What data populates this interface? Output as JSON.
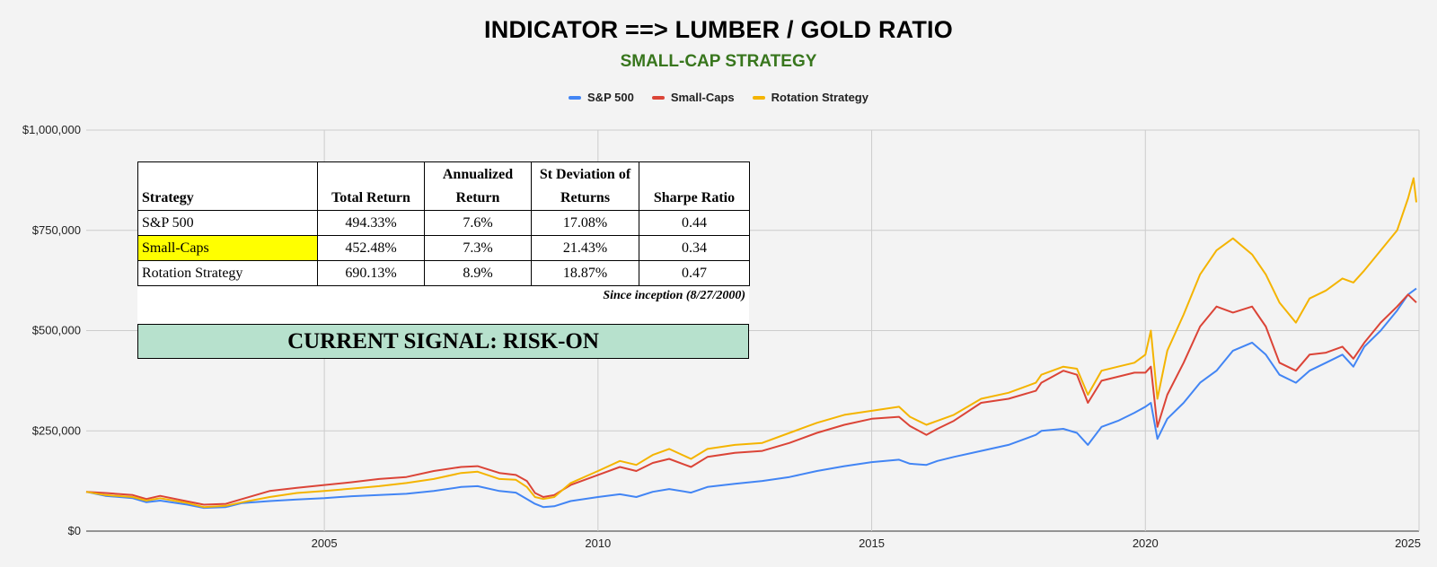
{
  "title": "INDICATOR ==> LUMBER / GOLD RATIO",
  "subtitle": "SMALL-CAP STRATEGY",
  "colors": {
    "sp500": "#4285f4",
    "smallcaps": "#db4437",
    "rotation": "#f4b400",
    "subtitle": "#38761d",
    "signal_bg": "#b7e1cd",
    "highlight": "#ffff00"
  },
  "legend": [
    {
      "label": "S&P 500",
      "color": "#4285f4"
    },
    {
      "label": "Small-Caps",
      "color": "#db4437"
    },
    {
      "label": "Rotation Strategy",
      "color": "#f4b400"
    }
  ],
  "stats_table": {
    "headers": [
      "Strategy",
      "Total Return",
      "Annualized Return",
      "St Deviation of Returns",
      "Sharpe Ratio"
    ],
    "rows": [
      [
        "S&P 500",
        "494.33%",
        "7.6%",
        "17.08%",
        "0.44"
      ],
      [
        "Small-Caps",
        "452.48%",
        "7.3%",
        "21.43%",
        "0.34"
      ],
      [
        "Rotation Strategy",
        "690.13%",
        "8.9%",
        "18.87%",
        "0.47"
      ]
    ],
    "footnote": "Since inception (8/27/2000)"
  },
  "signal": "CURRENT SIGNAL: RISK-ON",
  "chart_data": {
    "type": "line",
    "title": "INDICATOR ==> LUMBER / GOLD RATIO",
    "subtitle": "SMALL-CAP STRATEGY",
    "xlabel": "",
    "ylabel": "",
    "xlim": [
      2000.65,
      2025.0
    ],
    "ylim": [
      0,
      1000000
    ],
    "x_ticks": [
      2005,
      2010,
      2015,
      2020,
      2025
    ],
    "x_tick_labels": [
      "2005",
      "2010",
      "2015",
      "2020",
      "2025"
    ],
    "y_ticks": [
      0,
      250000,
      500000,
      750000,
      1000000
    ],
    "y_tick_labels": [
      "$0",
      "$250,000",
      "$500,000",
      "$750,000",
      "$1,000,000"
    ],
    "grid": true,
    "legend_position": "top-center",
    "series": [
      {
        "name": "S&P 500",
        "color": "#4285f4",
        "x": [
          2000.65,
          2001.0,
          2001.5,
          2001.75,
          2002.0,
          2002.5,
          2002.8,
          2003.2,
          2003.5,
          2004.0,
          2004.5,
          2005.0,
          2005.5,
          2006.0,
          2006.5,
          2007.0,
          2007.5,
          2007.8,
          2008.2,
          2008.5,
          2008.7,
          2008.85,
          2009.0,
          2009.2,
          2009.5,
          2010.0,
          2010.4,
          2010.7,
          2011.0,
          2011.3,
          2011.7,
          2012.0,
          2012.5,
          2013.0,
          2013.5,
          2014.0,
          2014.5,
          2015.0,
          2015.5,
          2015.7,
          2016.0,
          2016.2,
          2016.5,
          2017.0,
          2017.5,
          2018.0,
          2018.1,
          2018.5,
          2018.75,
          2018.95,
          2019.2,
          2019.5,
          2019.8,
          2020.0,
          2020.1,
          2020.22,
          2020.4,
          2020.7,
          2021.0,
          2021.3,
          2021.6,
          2021.95,
          2022.2,
          2022.45,
          2022.75,
          2023.0,
          2023.3,
          2023.6,
          2023.8,
          2024.0,
          2024.3,
          2024.6,
          2024.8,
          2024.95
        ],
        "y": [
          98000,
          88000,
          82000,
          72000,
          76000,
          66000,
          58000,
          60000,
          70000,
          75000,
          79000,
          82000,
          87000,
          90000,
          93000,
          100000,
          110000,
          112000,
          100000,
          96000,
          80000,
          68000,
          60000,
          62000,
          75000,
          85000,
          92000,
          85000,
          98000,
          105000,
          96000,
          110000,
          118000,
          125000,
          135000,
          150000,
          162000,
          172000,
          178000,
          168000,
          165000,
          175000,
          185000,
          200000,
          215000,
          240000,
          250000,
          255000,
          245000,
          215000,
          260000,
          275000,
          295000,
          310000,
          320000,
          230000,
          280000,
          320000,
          370000,
          400000,
          450000,
          470000,
          440000,
          390000,
          370000,
          400000,
          420000,
          440000,
          410000,
          460000,
          500000,
          550000,
          590000,
          605000
        ]
      },
      {
        "name": "Small-Caps",
        "color": "#db4437",
        "x": [
          2000.65,
          2001.0,
          2001.5,
          2001.75,
          2002.0,
          2002.5,
          2002.8,
          2003.2,
          2003.5,
          2004.0,
          2004.5,
          2005.0,
          2005.5,
          2006.0,
          2006.5,
          2007.0,
          2007.5,
          2007.8,
          2008.2,
          2008.5,
          2008.7,
          2008.85,
          2009.0,
          2009.2,
          2009.5,
          2010.0,
          2010.4,
          2010.7,
          2011.0,
          2011.3,
          2011.7,
          2012.0,
          2012.5,
          2013.0,
          2013.5,
          2014.0,
          2014.5,
          2015.0,
          2015.5,
          2015.7,
          2016.0,
          2016.2,
          2016.5,
          2017.0,
          2017.5,
          2018.0,
          2018.1,
          2018.5,
          2018.75,
          2018.95,
          2019.2,
          2019.5,
          2019.8,
          2020.0,
          2020.1,
          2020.22,
          2020.4,
          2020.7,
          2021.0,
          2021.3,
          2021.6,
          2021.95,
          2022.2,
          2022.45,
          2022.75,
          2023.0,
          2023.3,
          2023.6,
          2023.8,
          2024.0,
          2024.3,
          2024.6,
          2024.8,
          2024.95
        ],
        "y": [
          98000,
          95000,
          90000,
          80000,
          88000,
          74000,
          66000,
          68000,
          80000,
          100000,
          108000,
          115000,
          122000,
          130000,
          135000,
          150000,
          160000,
          162000,
          145000,
          140000,
          125000,
          95000,
          85000,
          90000,
          115000,
          140000,
          160000,
          150000,
          170000,
          180000,
          160000,
          185000,
          195000,
          200000,
          220000,
          245000,
          265000,
          280000,
          285000,
          262000,
          240000,
          255000,
          275000,
          320000,
          330000,
          350000,
          370000,
          400000,
          390000,
          320000,
          375000,
          385000,
          395000,
          395000,
          410000,
          260000,
          340000,
          420000,
          510000,
          560000,
          545000,
          560000,
          510000,
          420000,
          400000,
          440000,
          445000,
          460000,
          430000,
          470000,
          520000,
          560000,
          590000,
          570000
        ]
      },
      {
        "name": "Rotation Strategy",
        "color": "#f4b400",
        "x": [
          2000.65,
          2001.0,
          2001.5,
          2001.75,
          2002.0,
          2002.5,
          2002.8,
          2003.2,
          2003.5,
          2004.0,
          2004.5,
          2005.0,
          2005.5,
          2006.0,
          2006.5,
          2007.0,
          2007.5,
          2007.8,
          2008.2,
          2008.5,
          2008.7,
          2008.85,
          2009.0,
          2009.2,
          2009.5,
          2010.0,
          2010.4,
          2010.7,
          2011.0,
          2011.3,
          2011.7,
          2012.0,
          2012.5,
          2013.0,
          2013.5,
          2014.0,
          2014.5,
          2015.0,
          2015.5,
          2015.7,
          2016.0,
          2016.2,
          2016.5,
          2017.0,
          2017.5,
          2018.0,
          2018.1,
          2018.5,
          2018.75,
          2018.95,
          2019.2,
          2019.5,
          2019.8,
          2020.0,
          2020.1,
          2020.22,
          2020.4,
          2020.7,
          2021.0,
          2021.3,
          2021.6,
          2021.95,
          2022.2,
          2022.45,
          2022.75,
          2023.0,
          2023.3,
          2023.6,
          2023.8,
          2024.0,
          2024.3,
          2024.6,
          2024.8,
          2024.9,
          2024.95
        ],
        "y": [
          98000,
          90000,
          85000,
          76000,
          82000,
          70000,
          60000,
          63000,
          72000,
          85000,
          95000,
          100000,
          106000,
          112000,
          120000,
          130000,
          145000,
          148000,
          130000,
          128000,
          110000,
          85000,
          80000,
          85000,
          120000,
          150000,
          175000,
          165000,
          190000,
          205000,
          180000,
          205000,
          215000,
          220000,
          245000,
          270000,
          290000,
          300000,
          310000,
          285000,
          265000,
          275000,
          290000,
          330000,
          345000,
          370000,
          390000,
          410000,
          405000,
          340000,
          400000,
          410000,
          420000,
          440000,
          500000,
          330000,
          450000,
          540000,
          640000,
          700000,
          730000,
          690000,
          640000,
          570000,
          520000,
          580000,
          600000,
          630000,
          620000,
          650000,
          700000,
          750000,
          830000,
          880000,
          820000
        ]
      }
    ]
  }
}
